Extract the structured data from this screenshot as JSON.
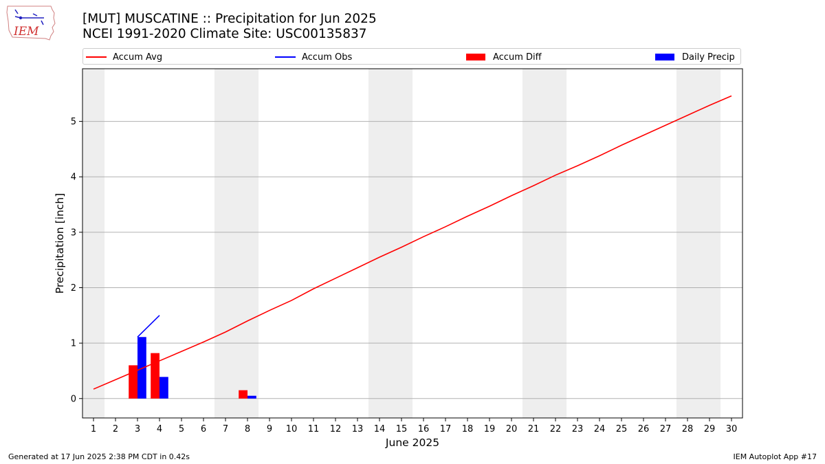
{
  "header": {
    "title_line1": "[MUT] MUSCATINE :: Precipitation for Jun 2025",
    "title_line2": "NCEI 1991-2020 Climate Site: USC00135837",
    "logo_text": "IEM"
  },
  "footer": {
    "generated": "Generated at 17 Jun 2025 2:38 PM CDT in 0.42s",
    "app": "IEM Autoplot App #17"
  },
  "colors": {
    "avg": "#ff0000",
    "obs": "#0000ff",
    "diff": "#ff0000",
    "precip": "#0000ff",
    "weekend": "#eeeeee",
    "grid": "#b0b0b0"
  },
  "chart_data": {
    "type": "bar",
    "title": "[MUT] MUSCATINE :: Precipitation for Jun 2025",
    "xlabel": "June 2025",
    "ylabel": "Precipitation [inch]",
    "xlim": [
      0.5,
      30.5
    ],
    "ylim": [
      -0.35,
      5.95
    ],
    "yticks": [
      0,
      1,
      2,
      3,
      4,
      5
    ],
    "grid": "y",
    "legend_placement": "top",
    "weekend_days": [
      1,
      7,
      8,
      14,
      15,
      21,
      22,
      28,
      29
    ],
    "legend": [
      {
        "name": "Accum Avg",
        "kind": "line",
        "color": "#ff0000"
      },
      {
        "name": "Accum Obs",
        "kind": "line",
        "color": "#0000ff"
      },
      {
        "name": "Accum Diff",
        "kind": "bar",
        "color": "#ff0000"
      },
      {
        "name": "Daily Precip",
        "kind": "bar",
        "color": "#0000ff"
      }
    ],
    "days": [
      1,
      2,
      3,
      4,
      5,
      6,
      7,
      8,
      9,
      10,
      11,
      12,
      13,
      14,
      15,
      16,
      17,
      18,
      19,
      20,
      21,
      22,
      23,
      24,
      25,
      26,
      27,
      28,
      29,
      30
    ],
    "accum_avg": [
      0.17,
      0.34,
      0.51,
      0.68,
      0.85,
      1.02,
      1.2,
      1.4,
      1.59,
      1.77,
      1.98,
      2.17,
      2.36,
      2.55,
      2.73,
      2.92,
      3.1,
      3.29,
      3.47,
      3.66,
      3.84,
      4.03,
      4.2,
      4.38,
      4.57,
      4.75,
      4.93,
      5.11,
      5.29,
      5.46
    ],
    "accum_obs": {
      "days": [
        3,
        4
      ],
      "values": [
        1.11,
        1.5
      ]
    },
    "accum_diff": {
      "days": [
        3,
        4,
        8
      ],
      "values": [
        0.6,
        0.82,
        0.15
      ]
    },
    "daily_precip": {
      "days": [
        3,
        4,
        8
      ],
      "values": [
        1.11,
        0.39,
        0.05
      ]
    }
  }
}
